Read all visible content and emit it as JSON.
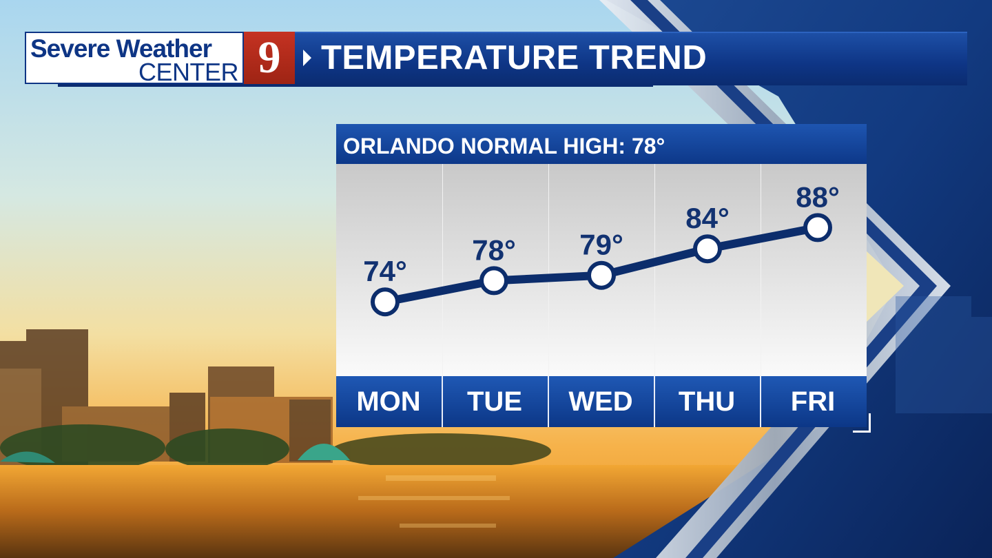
{
  "header": {
    "logo_line1": "Severe Weather",
    "logo_line2": "CENTER",
    "logo_number": "9",
    "title": "TEMPERATURE TREND"
  },
  "colors": {
    "brand_blue": "#0e3585",
    "line_navy": "#0c2d6c",
    "logo_red": "#c53222"
  },
  "chart_data": {
    "type": "line",
    "title": "ORLANDO NORMAL HIGH: 78°",
    "categories": [
      "MON",
      "TUE",
      "WED",
      "THU",
      "FRI"
    ],
    "values": [
      74,
      78,
      79,
      84,
      88
    ],
    "data_labels": [
      "74°",
      "78°",
      "79°",
      "84°",
      "88°"
    ],
    "unit": "°",
    "ylim": [
      60,
      100
    ],
    "grid": false
  }
}
